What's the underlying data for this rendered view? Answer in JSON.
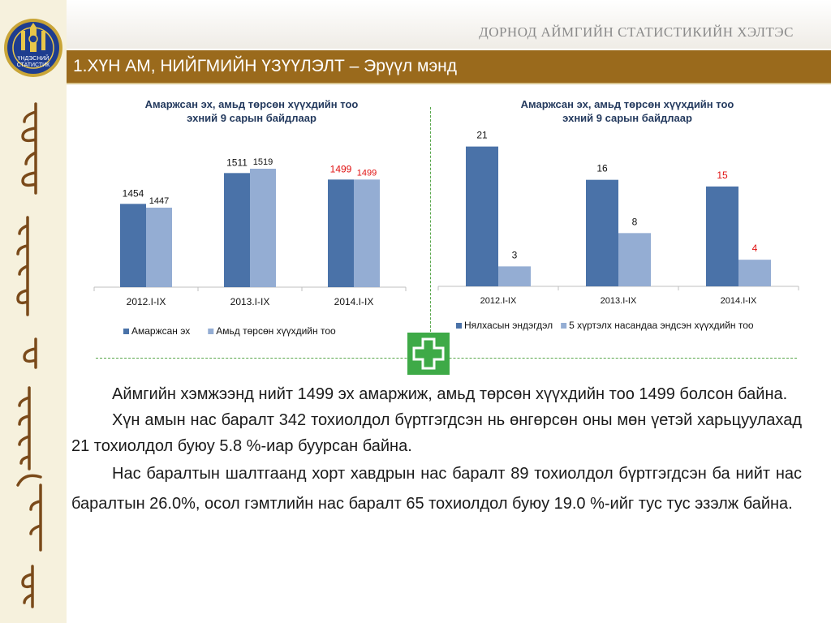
{
  "header": {
    "org_name": "ДОРНОД АЙМГИЙН СТАТИСТИКИЙН ХЭЛТЭС",
    "title": "1.ХҮН АМ, НИЙГМИЙН ҮЗҮҮЛЭЛТ – Эрүүл мэнд",
    "logo_text_line1": "ҮНДЭСНИЙ",
    "logo_text_line2": "СТАТИСТИК"
  },
  "colors": {
    "title_bar": "#9a6a1c",
    "series_dark": "#4a72a8",
    "series_light": "#94add3",
    "highlight_label": "#e01010",
    "cross_green": "#3eaa47"
  },
  "chart_data": [
    {
      "type": "bar",
      "title": "Амаржсан эх, амьд төрсөн хүүхдийн тоо эхний  9 сарын байдлаар",
      "title_line1": "Амаржсан эх, амьд төрсөн хүүхдийн тоо",
      "title_line2": "эхний  9 сарын байдлаар",
      "categories": [
        "2012.I-IX",
        "2013.I-IX",
        "2014.I-IX"
      ],
      "series": [
        {
          "name": "Амаржсан эх",
          "values": [
            1454,
            1511,
            1499
          ]
        },
        {
          "name": "Амьд төрсөн хүүхдийн тоо",
          "values": [
            1447,
            1519,
            1499
          ]
        }
      ],
      "ylim": [
        1300,
        1600
      ],
      "highlight_category": "2014.I-IX",
      "legend": "bottom",
      "grid": false
    },
    {
      "type": "bar",
      "title": "Амаржсан эх, амьд төрсөн хүүхдийн тоо эхний 9 сарын байдлаар",
      "title_line1": "Амаржсан эх, амьд төрсөн хүүхдийн тоо",
      "title_line2": "эхний 9 сарын байдлаар",
      "categories": [
        "2012.I-IX",
        "2013.I-IX",
        "2014.I-IX"
      ],
      "series": [
        {
          "name": "Нялхасын эндэгдэл",
          "values": [
            21,
            16,
            15
          ]
        },
        {
          "name": "5 хүртэлх насандаа эндсэн хүүхдийн тоо",
          "values": [
            3,
            8,
            4
          ]
        }
      ],
      "ylim": [
        0,
        24
      ],
      "highlight_category": "2014.I-IX",
      "legend": "bottom",
      "grid": false
    }
  ],
  "body": {
    "paragraphs": [
      "Аймгийн хэмжээнд нийт 1499 эх амаржиж, амьд төрсөн хүүхдийн тоо 1499 болсон байна.",
      "Хүн амын нас баралт 342 тохиолдол бүртгэгдсэн нь өнгөрсөн оны мөн үетэй харьцуулахад 21 тохиолдол буюу 5.8 %-иар буурсан байна.",
      "Нас баралтын шалтгаанд хорт хавдрын нас баралт 89 тохиолдол бүртгэгдсэн ба нийт нас баралтын  26.0%, осол гэмтлийн нас баралт 65 тохиолдол буюу 19.0 %-ийг тус тус эзэлж байна."
    ]
  },
  "icons": {
    "logo": "soyombo-emblem-icon",
    "cross": "medical-cross-icon",
    "script": "mongolian-script-ornament"
  }
}
